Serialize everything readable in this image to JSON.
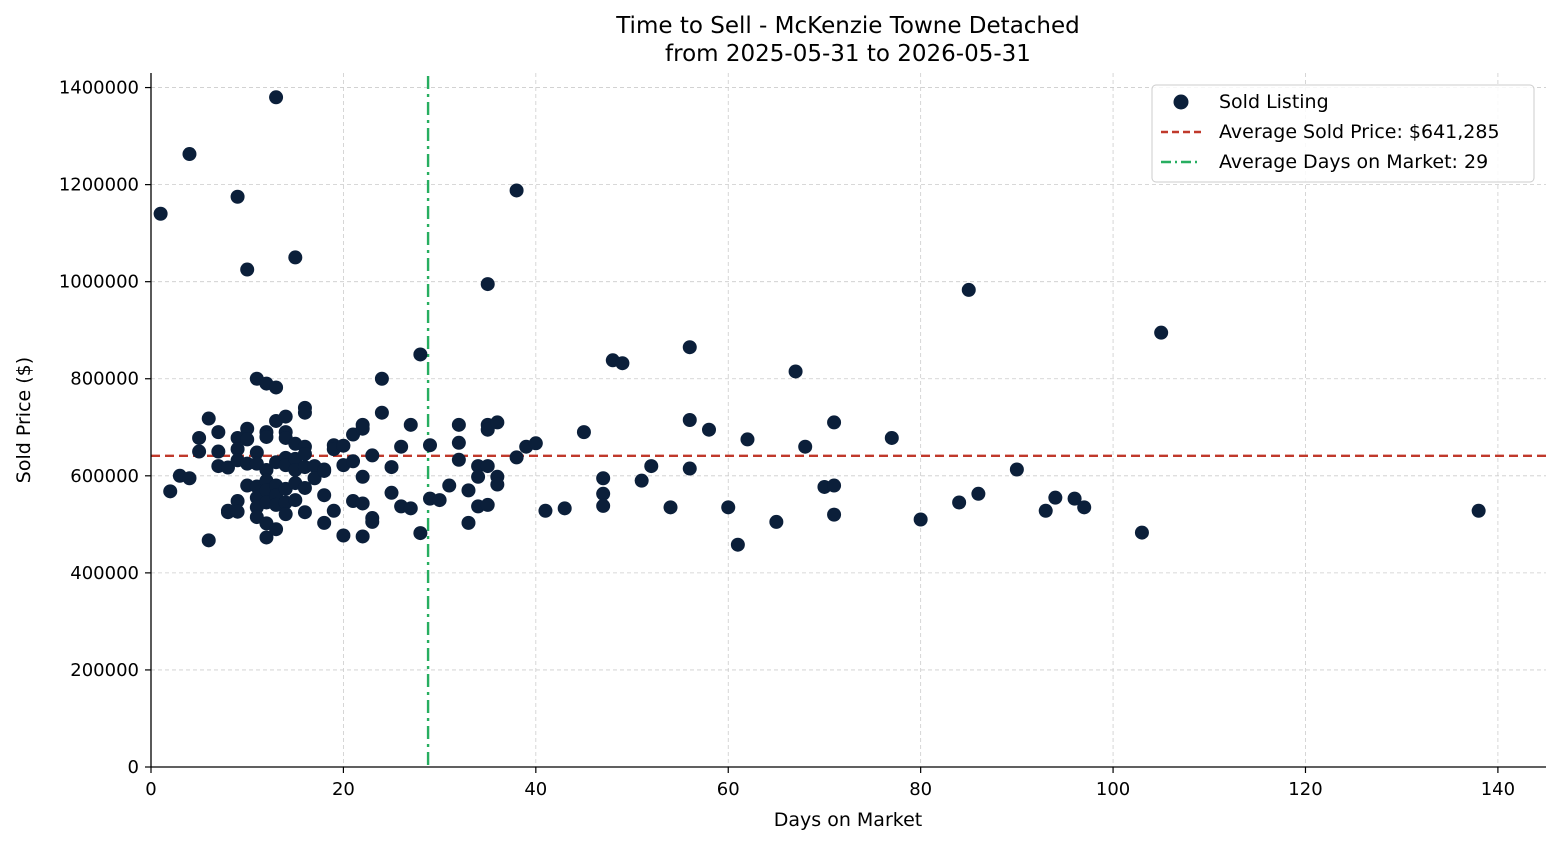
{
  "chart_data": {
    "type": "scatter",
    "title": "Time to Sell - McKenzie Towne Detached",
    "subtitle": "from 2025-05-31 to 2026-05-31",
    "xlabel": "Days on Market",
    "ylabel": "Sold Price ($)",
    "xlim": [
      0,
      145
    ],
    "ylim": [
      0,
      1430000
    ],
    "xticks": [
      0,
      20,
      40,
      60,
      80,
      100,
      120,
      140
    ],
    "yticks": [
      0,
      200000,
      400000,
      600000,
      800000,
      1000000,
      1200000,
      1400000
    ],
    "xtick_labels": [
      "0",
      "20",
      "40",
      "60",
      "80",
      "100",
      "120",
      "140"
    ],
    "ytick_labels": [
      "0",
      "200000",
      "400000",
      "600000",
      "800000",
      "1000000",
      "1200000",
      "1400000"
    ],
    "grid": true,
    "legend_position": "top-right",
    "colors": {
      "points": "#0b1f3a",
      "avg_price": "#c0392b",
      "avg_days": "#27ae60"
    },
    "series": [
      {
        "name": "Sold Listing",
        "points": [
          [
            1,
            1140000
          ],
          [
            2,
            568000
          ],
          [
            3,
            600000
          ],
          [
            4,
            1263000
          ],
          [
            4,
            595000
          ],
          [
            5,
            678000
          ],
          [
            5,
            650000
          ],
          [
            6,
            718000
          ],
          [
            6,
            467000
          ],
          [
            7,
            690000
          ],
          [
            7,
            650000
          ],
          [
            7,
            620000
          ],
          [
            8,
            525000
          ],
          [
            8,
            617000
          ],
          [
            8,
            528000
          ],
          [
            9,
            1175000
          ],
          [
            9,
            678000
          ],
          [
            9,
            655000
          ],
          [
            9,
            632000
          ],
          [
            9,
            548000
          ],
          [
            9,
            526000
          ],
          [
            10,
            1025000
          ],
          [
            10,
            697000
          ],
          [
            10,
            675000
          ],
          [
            10,
            625000
          ],
          [
            10,
            580000
          ],
          [
            11,
            800000
          ],
          [
            11,
            648000
          ],
          [
            11,
            625000
          ],
          [
            11,
            578000
          ],
          [
            11,
            555000
          ],
          [
            11,
            535000
          ],
          [
            11,
            515000
          ],
          [
            12,
            790000
          ],
          [
            12,
            690000
          ],
          [
            12,
            680000
          ],
          [
            12,
            612000
          ],
          [
            12,
            590000
          ],
          [
            12,
            570000
          ],
          [
            12,
            545000
          ],
          [
            12,
            502000
          ],
          [
            12,
            473000
          ],
          [
            13,
            1380000
          ],
          [
            13,
            782000
          ],
          [
            13,
            713000
          ],
          [
            13,
            628000
          ],
          [
            13,
            580000
          ],
          [
            13,
            560000
          ],
          [
            13,
            540000
          ],
          [
            13,
            490000
          ],
          [
            14,
            722000
          ],
          [
            14,
            690000
          ],
          [
            14,
            678000
          ],
          [
            14,
            637000
          ],
          [
            14,
            622000
          ],
          [
            14,
            573000
          ],
          [
            14,
            545000
          ],
          [
            14,
            521000
          ],
          [
            15,
            1050000
          ],
          [
            15,
            666000
          ],
          [
            15,
            635000
          ],
          [
            15,
            612000
          ],
          [
            15,
            585000
          ],
          [
            15,
            550000
          ],
          [
            16,
            740000
          ],
          [
            16,
            730000
          ],
          [
            16,
            660000
          ],
          [
            16,
            645000
          ],
          [
            16,
            618000
          ],
          [
            16,
            575000
          ],
          [
            16,
            525000
          ],
          [
            17,
            620000
          ],
          [
            17,
            595000
          ],
          [
            18,
            613000
          ],
          [
            18,
            610000
          ],
          [
            18,
            560000
          ],
          [
            18,
            503000
          ],
          [
            19,
            663000
          ],
          [
            19,
            655000
          ],
          [
            19,
            528000
          ],
          [
            20,
            662000
          ],
          [
            20,
            622000
          ],
          [
            20,
            477000
          ],
          [
            21,
            685000
          ],
          [
            21,
            630000
          ],
          [
            21,
            548000
          ],
          [
            22,
            705000
          ],
          [
            22,
            697000
          ],
          [
            22,
            598000
          ],
          [
            22,
            543000
          ],
          [
            22,
            475000
          ],
          [
            23,
            642000
          ],
          [
            23,
            513000
          ],
          [
            23,
            505000
          ],
          [
            24,
            800000
          ],
          [
            24,
            730000
          ],
          [
            25,
            618000
          ],
          [
            25,
            565000
          ],
          [
            26,
            660000
          ],
          [
            26,
            537000
          ],
          [
            27,
            705000
          ],
          [
            27,
            533000
          ],
          [
            28,
            850000
          ],
          [
            28,
            482000
          ],
          [
            29,
            663000
          ],
          [
            29,
            553000
          ],
          [
            30,
            550000
          ],
          [
            31,
            580000
          ],
          [
            32,
            705000
          ],
          [
            32,
            668000
          ],
          [
            32,
            633000
          ],
          [
            33,
            570000
          ],
          [
            33,
            503000
          ],
          [
            34,
            620000
          ],
          [
            34,
            598000
          ],
          [
            34,
            537000
          ],
          [
            35,
            995000
          ],
          [
            35,
            705000
          ],
          [
            35,
            695000
          ],
          [
            35,
            620000
          ],
          [
            35,
            540000
          ],
          [
            36,
            710000
          ],
          [
            36,
            598000
          ],
          [
            36,
            582000
          ],
          [
            38,
            1188000
          ],
          [
            38,
            638000
          ],
          [
            39,
            660000
          ],
          [
            40,
            667000
          ],
          [
            41,
            528000
          ],
          [
            43,
            533000
          ],
          [
            45,
            690000
          ],
          [
            47,
            595000
          ],
          [
            47,
            563000
          ],
          [
            47,
            538000
          ],
          [
            48,
            838000
          ],
          [
            49,
            832000
          ],
          [
            51,
            590000
          ],
          [
            52,
            620000
          ],
          [
            54,
            535000
          ],
          [
            56,
            865000
          ],
          [
            56,
            715000
          ],
          [
            56,
            615000
          ],
          [
            58,
            695000
          ],
          [
            60,
            535000
          ],
          [
            61,
            458000
          ],
          [
            62,
            675000
          ],
          [
            65,
            505000
          ],
          [
            67,
            815000
          ],
          [
            68,
            660000
          ],
          [
            70,
            577000
          ],
          [
            71,
            710000
          ],
          [
            71,
            580000
          ],
          [
            71,
            520000
          ],
          [
            77,
            678000
          ],
          [
            80,
            510000
          ],
          [
            84,
            545000
          ],
          [
            85,
            983000
          ],
          [
            86,
            563000
          ],
          [
            90,
            613000
          ],
          [
            93,
            528000
          ],
          [
            94,
            555000
          ],
          [
            96,
            553000
          ],
          [
            97,
            535000
          ],
          [
            103,
            483000
          ],
          [
            105,
            895000
          ],
          [
            138,
            528000
          ]
        ]
      }
    ],
    "reference_lines": [
      {
        "name": "Average Sold Price: $641,285",
        "orientation": "horizontal",
        "value": 641285,
        "style": "dashed"
      },
      {
        "name": "Average Days on Market: 29",
        "orientation": "vertical",
        "value": 28.8,
        "style": "dash-dot"
      }
    ]
  }
}
